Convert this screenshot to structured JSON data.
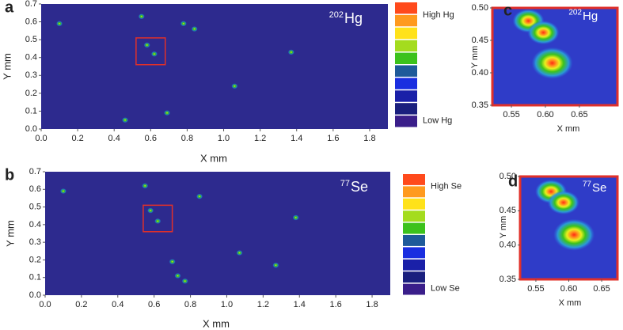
{
  "chart_data": [
    {
      "type": "heatmap",
      "panel": "a",
      "title_mass": "202",
      "title_element": "Hg",
      "xlabel": "X mm",
      "ylabel": "Y mm",
      "xlim": [
        0,
        1.9
      ],
      "ylim": [
        0,
        0.7
      ],
      "xticks": [
        {
          "value": 0,
          "label": "0.0"
        },
        0.2,
        0.4,
        0.6,
        0.8,
        {
          "value": 1,
          "label": "1.0"
        },
        1.2,
        1.4,
        1.6,
        1.8
      ],
      "yticks": [
        {
          "value": 0,
          "label": "0.0"
        },
        0.1,
        0.2,
        0.3,
        0.4,
        0.5,
        0.6,
        0.7
      ],
      "background": "#2d2a8e",
      "spots": {
        "x": [
          0.58,
          0.62,
          1.37,
          0.84,
          0.69,
          0.46,
          0.55,
          0.1,
          0.78,
          1.06
        ],
        "y": [
          0.47,
          0.42,
          0.43,
          0.56,
          0.09,
          0.05,
          0.63,
          0.59,
          0.59,
          0.24
        ]
      },
      "zoom_box": {
        "xlim": [
          0.52,
          0.68
        ],
        "ylim": [
          0.36,
          0.51
        ]
      },
      "box_color": "#e0302a",
      "legend": {
        "high": "High Hg",
        "low": "Low Hg",
        "colors": [
          "#ff4a1c",
          "#ff9a1e",
          "#ffe21a",
          "#a4dc1e",
          "#3cc21c",
          "#1e5a9a",
          "#1a2ee0",
          "#1a20a8",
          "#1a1f7e",
          "#3a1e8a"
        ]
      }
    },
    {
      "type": "heatmap",
      "panel": "b",
      "title_mass": "77",
      "title_element": "Se",
      "xlabel": "X mm",
      "ylabel": "Y mm",
      "xlim": [
        0,
        1.9
      ],
      "ylim": [
        0,
        0.7
      ],
      "xticks": [
        {
          "value": 0,
          "label": "0.0"
        },
        0.2,
        0.4,
        0.6,
        0.8,
        {
          "value": 1,
          "label": "1.0"
        },
        1.2,
        1.4,
        1.6,
        1.8
      ],
      "yticks": [
        {
          "value": 0,
          "label": "0.0"
        },
        0.1,
        0.2,
        0.3,
        0.4,
        0.5,
        0.6,
        0.7
      ],
      "background": "#2d2a8e",
      "spots": {
        "x": [
          0.1,
          0.58,
          0.62,
          1.38,
          0.85,
          0.7,
          1.07,
          0.73,
          0.77,
          1.27,
          0.55
        ],
        "y": [
          0.59,
          0.48,
          0.42,
          0.44,
          0.56,
          0.19,
          0.24,
          0.11,
          0.08,
          0.17,
          0.62
        ]
      },
      "zoom_box": {
        "xlim": [
          0.54,
          0.7
        ],
        "ylim": [
          0.36,
          0.51
        ]
      },
      "box_color": "#e0302a",
      "legend": {
        "high": "High Se",
        "low": "Low Se",
        "colors": [
          "#ff4a1c",
          "#ff9a1e",
          "#ffe21a",
          "#a4dc1e",
          "#3cc21c",
          "#1e5a9a",
          "#1a2ee0",
          "#1a20a8",
          "#1a1f7e",
          "#3a1e8a"
        ]
      }
    },
    {
      "type": "zoom",
      "panel": "c",
      "title_mass": "202",
      "title_element": "Hg",
      "xlabel": "X mm",
      "ylabel": "Y mm",
      "xlim": [
        0.522,
        0.706
      ],
      "ylim": [
        0.35,
        0.5
      ],
      "xticks": [
        0.55,
        {
          "value": 0.6,
          "label": "0.60"
        },
        0.65
      ],
      "yticks": [
        0.35,
        {
          "value": 0.4,
          "label": "0.40"
        },
        0.45,
        {
          "value": 0.5,
          "label": "0.50"
        }
      ],
      "background": "#2f3cc8",
      "frame_color": "#e0302a",
      "spots": {
        "x": [
          0.575,
          0.597,
          0.61
        ],
        "y": [
          0.48,
          0.462,
          0.415
        ]
      }
    },
    {
      "type": "zoom",
      "panel": "d",
      "title_mass": "77",
      "title_element": "Se",
      "xlabel": "X mm",
      "ylabel": "Y mm",
      "xlim": [
        0.526,
        0.674
      ],
      "ylim": [
        0.35,
        0.5
      ],
      "xticks": [
        0.55,
        {
          "value": 0.6,
          "label": "0.60"
        },
        0.65
      ],
      "yticks": [
        0.35,
        {
          "value": 0.4,
          "label": "0.40"
        },
        0.45,
        {
          "value": 0.5,
          "label": "0.50"
        }
      ],
      "background": "#2f3cc8",
      "frame_color": "#e0302a",
      "spots": {
        "x": [
          0.573,
          0.592,
          0.608
        ],
        "y": [
          0.478,
          0.462,
          0.415
        ]
      }
    }
  ]
}
